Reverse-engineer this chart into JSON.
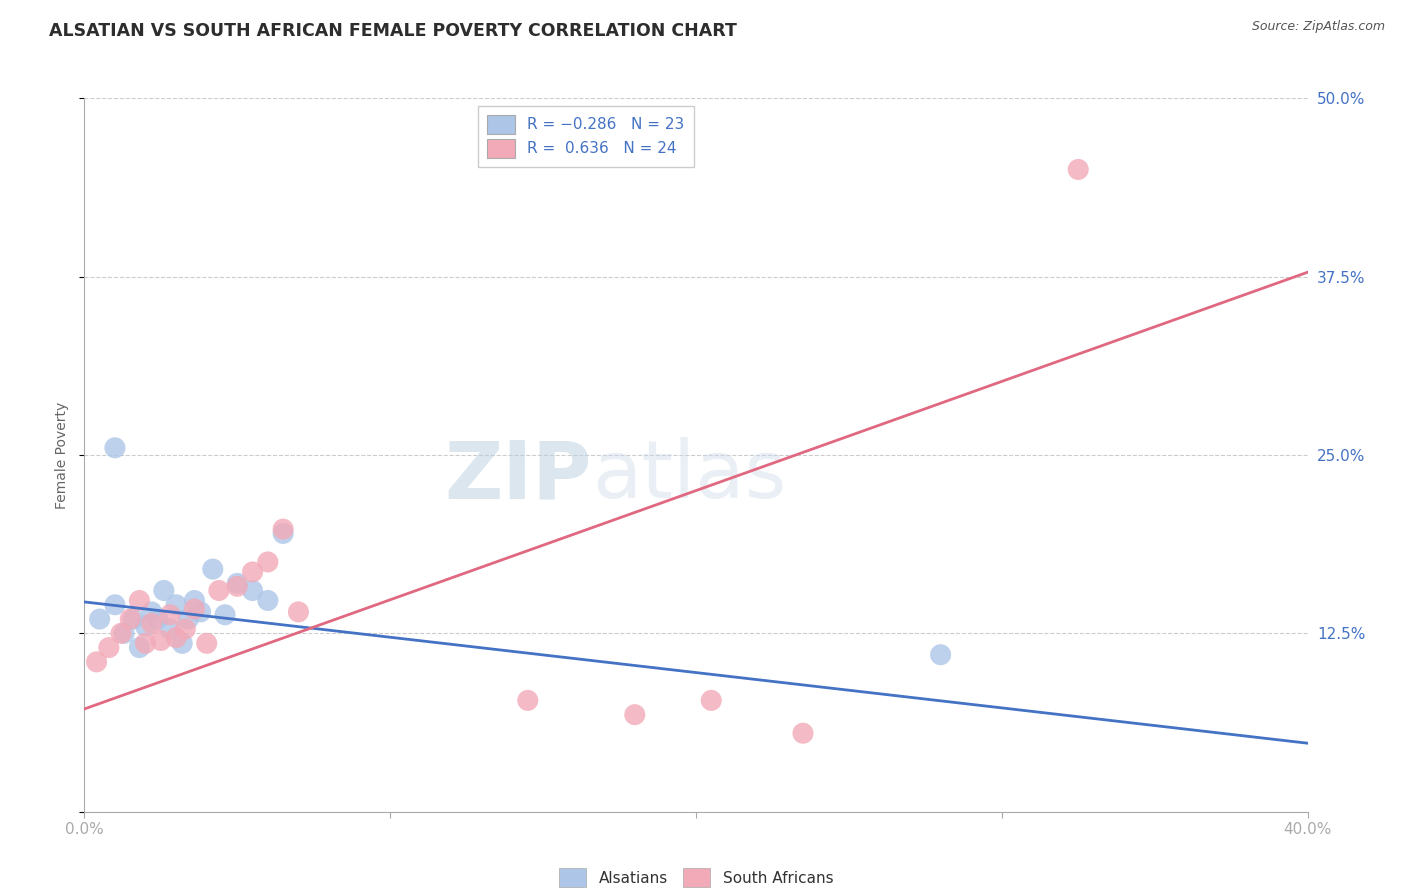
{
  "title": "ALSATIAN VS SOUTH AFRICAN FEMALE POVERTY CORRELATION CHART",
  "source": "Source: ZipAtlas.com",
  "ylabel": "Female Poverty",
  "xlim": [
    0.0,
    0.4
  ],
  "ylim": [
    0.0,
    0.5
  ],
  "xticks": [
    0.0,
    0.1,
    0.2,
    0.3,
    0.4
  ],
  "xtick_labels": [
    "0.0%",
    "",
    "",
    "",
    "40.0%"
  ],
  "yticks": [
    0.0,
    0.125,
    0.25,
    0.375,
    0.5
  ],
  "ytick_labels": [
    "",
    "12.5%",
    "25.0%",
    "37.5%",
    "50.0%"
  ],
  "blue_scatter_color": "#adc6e8",
  "pink_scatter_color": "#f2aab8",
  "blue_line_color": "#4472c4",
  "pink_line_color": "#e06880",
  "legend_blue_label_r": "R = -0.286",
  "legend_blue_label_n": "N = 23",
  "legend_pink_label_r": "R =  0.636",
  "legend_pink_label_n": "N = 24",
  "alsatians_label": "Alsatians",
  "south_africans_label": "South Africans",
  "watermark_zip": "ZIP",
  "watermark_atlas": "atlas",
  "alsatians_x": [
    0.005,
    0.01,
    0.013,
    0.016,
    0.018,
    0.02,
    0.022,
    0.024,
    0.026,
    0.028,
    0.03,
    0.032,
    0.034,
    0.036,
    0.038,
    0.042,
    0.046,
    0.05,
    0.055,
    0.06,
    0.065,
    0.28,
    0.01
  ],
  "alsatians_y": [
    0.135,
    0.145,
    0.125,
    0.135,
    0.115,
    0.13,
    0.14,
    0.135,
    0.155,
    0.128,
    0.145,
    0.118,
    0.135,
    0.148,
    0.14,
    0.17,
    0.138,
    0.16,
    0.155,
    0.148,
    0.195,
    0.11,
    0.255
  ],
  "south_africans_x": [
    0.004,
    0.008,
    0.012,
    0.015,
    0.018,
    0.02,
    0.022,
    0.025,
    0.028,
    0.03,
    0.033,
    0.036,
    0.04,
    0.044,
    0.05,
    0.055,
    0.06,
    0.065,
    0.145,
    0.18,
    0.205,
    0.235,
    0.325,
    0.07
  ],
  "south_africans_y": [
    0.105,
    0.115,
    0.125,
    0.135,
    0.148,
    0.118,
    0.132,
    0.12,
    0.138,
    0.122,
    0.128,
    0.142,
    0.118,
    0.155,
    0.158,
    0.168,
    0.175,
    0.198,
    0.078,
    0.068,
    0.078,
    0.055,
    0.45,
    0.14
  ],
  "blue_line_x0": 0.0,
  "blue_line_y0": 0.147,
  "blue_line_x1": 0.4,
  "blue_line_y1": 0.048,
  "pink_line_x0": 0.0,
  "pink_line_y0": 0.072,
  "pink_line_x1": 0.4,
  "pink_line_y1": 0.378,
  "grid_color": "#cccccc",
  "background_color": "#ffffff",
  "title_color": "#2d2d2d",
  "axis_label_color": "#666666",
  "tick_label_color": "#4472c4"
}
